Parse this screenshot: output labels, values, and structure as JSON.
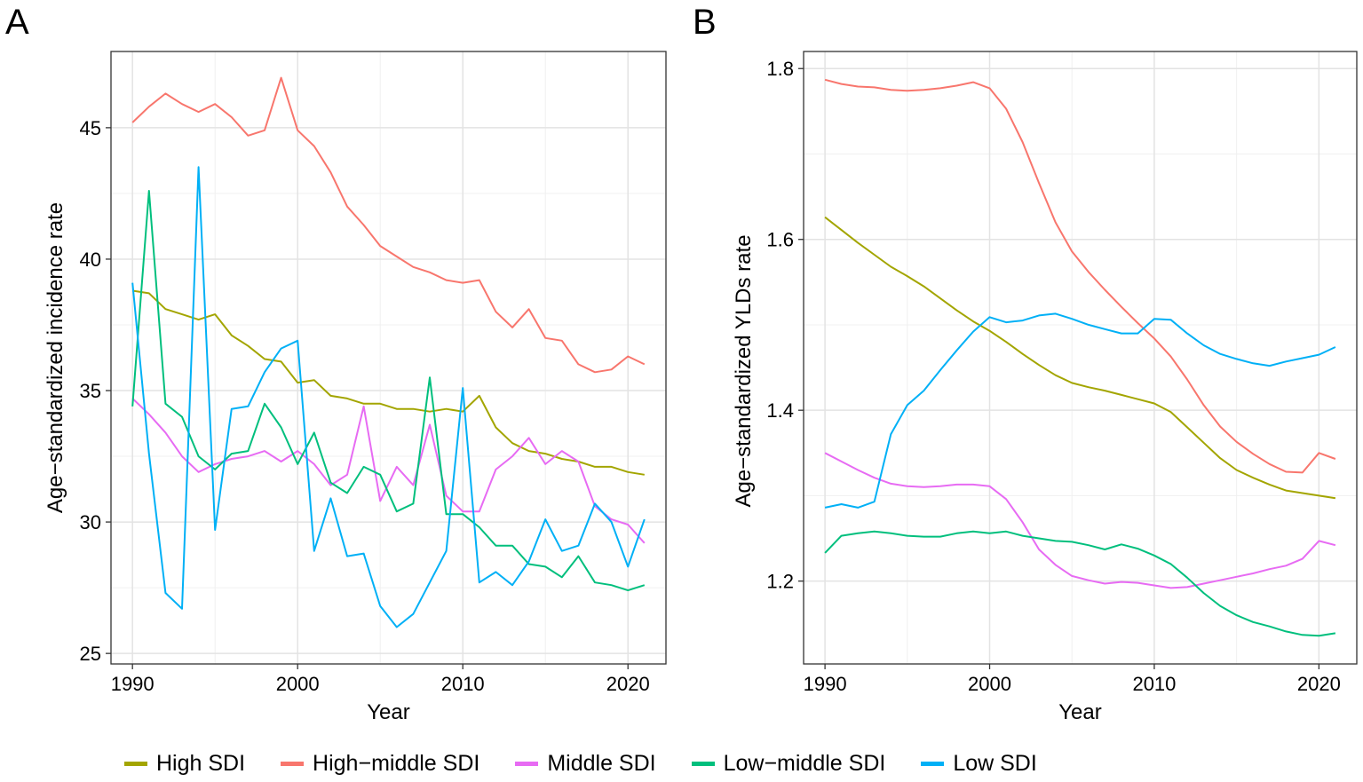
{
  "chart_data": [
    {
      "panel_label": "A",
      "type": "line",
      "title": "",
      "xlabel": "Year",
      "ylabel": "Age-standardized incidence rate",
      "xlim": [
        1988.7,
        2022.3
      ],
      "ylim": [
        24.6,
        47.9
      ],
      "xticks": [
        1990,
        2000,
        2010,
        2020
      ],
      "xtick_labels": [
        "1990",
        "2000",
        "2010",
        "2020"
      ],
      "yticks": [
        25,
        30,
        35,
        40,
        45
      ],
      "ytick_labels": [
        "25",
        "30",
        "35",
        "40",
        "45"
      ],
      "grid": true,
      "x": [
        1990,
        1991,
        1992,
        1993,
        1994,
        1995,
        1996,
        1997,
        1998,
        1999,
        2000,
        2001,
        2002,
        2003,
        2004,
        2005,
        2006,
        2007,
        2008,
        2009,
        2010,
        2011,
        2012,
        2013,
        2014,
        2015,
        2016,
        2017,
        2018,
        2019,
        2020,
        2021
      ],
      "series": [
        {
          "name": "High SDI",
          "color": "#a3a500",
          "values": [
            38.8,
            38.7,
            38.1,
            37.9,
            37.7,
            37.9,
            37.1,
            36.7,
            36.2,
            36.1,
            35.3,
            35.4,
            34.8,
            34.7,
            34.5,
            34.5,
            34.3,
            34.3,
            34.2,
            34.3,
            34.2,
            34.8,
            33.6,
            33.0,
            32.7,
            32.6,
            32.4,
            32.3,
            32.1,
            32.1,
            31.9,
            31.8
          ]
        },
        {
          "name": "High-middle SDI",
          "color": "#f8766d",
          "values": [
            45.2,
            45.8,
            46.3,
            45.9,
            45.6,
            45.9,
            45.4,
            44.7,
            44.9,
            46.9,
            44.9,
            44.3,
            43.3,
            42.0,
            41.3,
            40.5,
            40.1,
            39.7,
            39.5,
            39.2,
            39.1,
            39.2,
            38.0,
            37.4,
            38.1,
            37.0,
            36.9,
            36.0,
            35.7,
            35.8,
            36.3,
            36.0
          ]
        },
        {
          "name": "Middle SDI",
          "color": "#e76bf3",
          "values": [
            34.7,
            34.1,
            33.4,
            32.5,
            31.9,
            32.2,
            32.4,
            32.5,
            32.7,
            32.3,
            32.7,
            32.2,
            31.4,
            31.8,
            34.4,
            30.8,
            32.1,
            31.4,
            33.7,
            31.0,
            30.4,
            30.4,
            32.0,
            32.5,
            33.2,
            32.2,
            32.7,
            32.3,
            30.6,
            30.1,
            29.9,
            29.2
          ]
        },
        {
          "name": "Low-middle SDI",
          "color": "#00bf7d",
          "values": [
            34.4,
            42.6,
            34.5,
            34.0,
            32.5,
            32.0,
            32.6,
            32.7,
            34.5,
            33.6,
            32.2,
            33.4,
            31.5,
            31.1,
            32.1,
            31.8,
            30.4,
            30.7,
            35.5,
            30.3,
            30.3,
            29.8,
            29.1,
            29.1,
            28.4,
            28.3,
            27.9,
            28.7,
            27.7,
            27.6,
            27.4,
            27.6
          ]
        },
        {
          "name": "Low SDI",
          "color": "#00b0f6",
          "values": [
            39.1,
            32.6,
            27.3,
            26.7,
            43.5,
            29.7,
            34.3,
            34.4,
            35.7,
            36.6,
            36.9,
            28.9,
            30.9,
            28.7,
            28.8,
            26.8,
            26.0,
            26.5,
            27.7,
            28.9,
            35.1,
            27.7,
            28.1,
            27.6,
            28.5,
            30.1,
            28.9,
            29.1,
            30.7,
            30.0,
            28.3,
            30.1
          ]
        }
      ]
    },
    {
      "panel_label": "B",
      "type": "line",
      "title": "",
      "xlabel": "Year",
      "ylabel": "Age-standardized YLDs rate",
      "xlim": [
        1988.7,
        2022.3
      ],
      "ylim": [
        1.103,
        1.82
      ],
      "xticks": [
        1990,
        2000,
        2010,
        2020
      ],
      "xtick_labels": [
        "1990",
        "2000",
        "2010",
        "2020"
      ],
      "yticks": [
        1.2,
        1.4,
        1.6,
        1.8
      ],
      "ytick_labels": [
        "1.2",
        "1.4",
        "1.6",
        "1.8"
      ],
      "grid": true,
      "x": [
        1990,
        1991,
        1992,
        1993,
        1994,
        1995,
        1996,
        1997,
        1998,
        1999,
        2000,
        2001,
        2002,
        2003,
        2004,
        2005,
        2006,
        2007,
        2008,
        2009,
        2010,
        2011,
        2012,
        2013,
        2014,
        2015,
        2016,
        2017,
        2018,
        2019,
        2020,
        2021
      ],
      "series": [
        {
          "name": "High SDI",
          "color": "#a3a500",
          "values": [
            1.626,
            1.611,
            1.596,
            1.582,
            1.568,
            1.557,
            1.545,
            1.531,
            1.517,
            1.504,
            1.493,
            1.48,
            1.466,
            1.453,
            1.441,
            1.432,
            1.427,
            1.423,
            1.418,
            1.413,
            1.408,
            1.398,
            1.38,
            1.362,
            1.344,
            1.33,
            1.321,
            1.313,
            1.306,
            1.303,
            1.3,
            1.297
          ]
        },
        {
          "name": "High-middle SDI",
          "color": "#f8766d",
          "values": [
            1.787,
            1.782,
            1.779,
            1.778,
            1.775,
            1.774,
            1.775,
            1.777,
            1.78,
            1.784,
            1.777,
            1.753,
            1.714,
            1.666,
            1.62,
            1.586,
            1.562,
            1.541,
            1.521,
            1.502,
            1.484,
            1.463,
            1.436,
            1.406,
            1.381,
            1.363,
            1.349,
            1.337,
            1.328,
            1.327,
            1.35,
            1.343
          ]
        },
        {
          "name": "Middle SDI",
          "color": "#e76bf3",
          "values": [
            1.35,
            1.34,
            1.33,
            1.321,
            1.314,
            1.311,
            1.31,
            1.311,
            1.313,
            1.313,
            1.311,
            1.296,
            1.269,
            1.237,
            1.219,
            1.206,
            1.201,
            1.197,
            1.199,
            1.198,
            1.195,
            1.192,
            1.193,
            1.197,
            1.201,
            1.205,
            1.209,
            1.214,
            1.218,
            1.226,
            1.247,
            1.242
          ]
        },
        {
          "name": "Low-middle SDI",
          "color": "#00bf7d",
          "values": [
            1.233,
            1.253,
            1.256,
            1.258,
            1.256,
            1.253,
            1.252,
            1.252,
            1.256,
            1.258,
            1.256,
            1.258,
            1.253,
            1.25,
            1.247,
            1.246,
            1.242,
            1.237,
            1.243,
            1.238,
            1.23,
            1.22,
            1.204,
            1.186,
            1.171,
            1.16,
            1.152,
            1.147,
            1.141,
            1.137,
            1.136,
            1.139
          ]
        },
        {
          "name": "Low SDI",
          "color": "#00b0f6",
          "values": [
            1.286,
            1.29,
            1.286,
            1.293,
            1.372,
            1.406,
            1.423,
            1.447,
            1.47,
            1.492,
            1.509,
            1.503,
            1.505,
            1.511,
            1.513,
            1.507,
            1.5,
            1.495,
            1.49,
            1.49,
            1.507,
            1.506,
            1.49,
            1.476,
            1.466,
            1.46,
            1.455,
            1.452,
            1.457,
            1.461,
            1.465,
            1.474
          ]
        }
      ]
    }
  ],
  "legend": {
    "position": "bottom",
    "items": [
      {
        "name": "High SDI",
        "color": "#a3a500"
      },
      {
        "name": "High−middle SDI",
        "color": "#f8766d"
      },
      {
        "name": "Middle SDI",
        "color": "#e76bf3"
      },
      {
        "name": "Low−middle SDI",
        "color": "#00bf7d"
      },
      {
        "name": "Low SDI",
        "color": "#00b0f6"
      }
    ]
  },
  "panel_labels": [
    "A",
    "B"
  ],
  "axis_text": {
    "a_ylabel": "Age−standardized incidence rate",
    "b_ylabel": "Age−standardized YLDs rate",
    "xlabel": "Year"
  }
}
